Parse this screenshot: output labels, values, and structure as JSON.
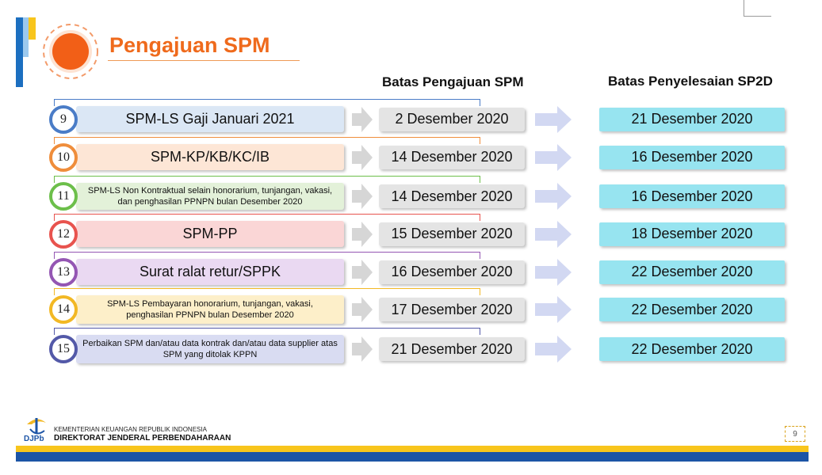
{
  "title": "Pengajuan SPM",
  "headers": {
    "batas_pengajuan": "Batas Pengajuan SPM",
    "batas_penyelesaian": "Batas Penyelesaian SP2D"
  },
  "rows": [
    {
      "num": "9",
      "label": "SPM-LS Gaji Januari 2021",
      "deadline": "2 Desember 2020",
      "finish": "21 Desember 2020",
      "color": "#4a7cc7",
      "fill": "#dbe7f5"
    },
    {
      "num": "10",
      "label": "SPM-KP/KB/KC/IB",
      "deadline": "14 Desember 2020",
      "finish": "16 Desember 2020",
      "color": "#ef8d3b",
      "fill": "#fde6d6"
    },
    {
      "num": "11",
      "label": "SPM-LS Non Kontraktual selain honorarium, tunjangan, vakasi, dan penghasilan PPNPN bulan Desember 2020",
      "deadline": "14 Desember 2020",
      "finish": "16 Desember 2020",
      "color": "#6cbf4a",
      "fill": "#e3f1d9"
    },
    {
      "num": "12",
      "label": "SPM-PP",
      "deadline": "15 Desember 2020",
      "finish": "18 Desember 2020",
      "color": "#e8534e",
      "fill": "#fad6d6"
    },
    {
      "num": "13",
      "label": "Surat ralat retur/SPPK",
      "deadline": "16 Desember 2020",
      "finish": "22 Desember 2020",
      "color": "#9456b3",
      "fill": "#ead9f2"
    },
    {
      "num": "14",
      "label": "SPM-LS Pembayaran honorarium, tunjangan, vakasi, penghasilan PPNPN bulan Desember 2020",
      "deadline": "17 Desember 2020",
      "finish": "22 Desember 2020",
      "color": "#f2b824",
      "fill": "#fdefc9"
    },
    {
      "num": "15",
      "label": "Perbaikan SPM dan/atau data kontrak dan/atau data supplier atas SPM yang ditolak KPPN",
      "deadline": "21 Desember 2020",
      "finish": "22 Desember 2020",
      "color": "#5359a8",
      "fill": "#d9dcf2"
    }
  ],
  "footer": {
    "ministry": "KEMENTERIAN KEUANGAN REPUBLIK INDONESIA",
    "directorate": "DIREKTORAT JENDERAL PERBENDAHARAAN",
    "logo_text": "DJPb",
    "page_number": "9"
  }
}
